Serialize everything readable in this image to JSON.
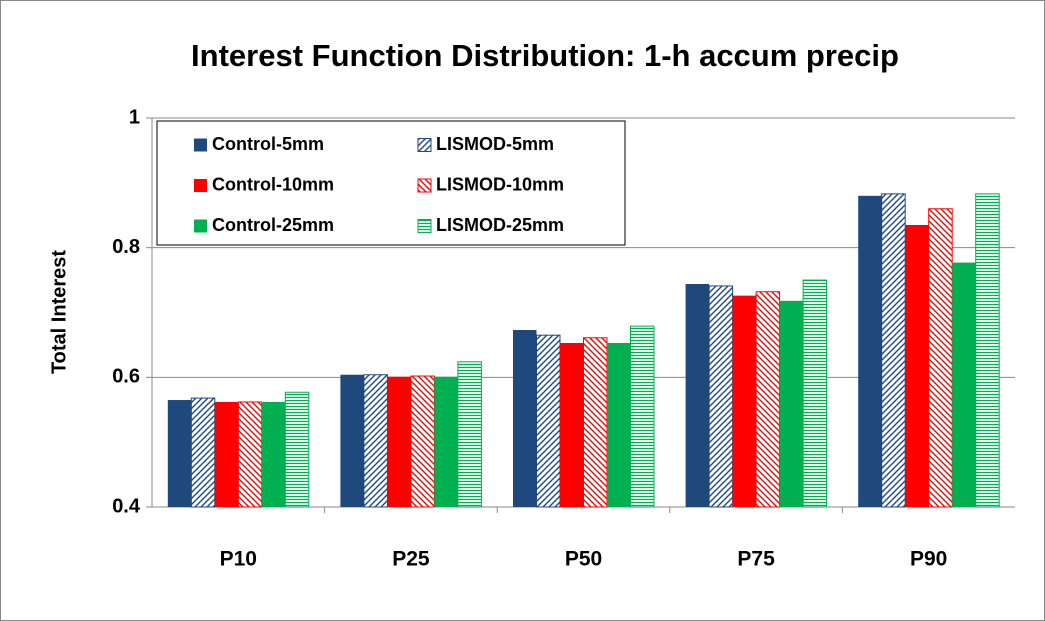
{
  "chart_data": {
    "type": "bar",
    "title": "Interest Function Distribution: 1-h accum precip",
    "y_label": "Total Interest",
    "categories": [
      "P10",
      "P25",
      "P50",
      "P75",
      "P90"
    ],
    "series": [
      {
        "name": "Control-5mm",
        "color": "#1f497d",
        "values": [
          0.565,
          0.604,
          0.673,
          0.744,
          0.88
        ]
      },
      {
        "name": "LISMOD-5mm",
        "color": "#1f497d",
        "pattern": "diagonal-up",
        "values": [
          0.568,
          0.604,
          0.665,
          0.741,
          0.883
        ]
      },
      {
        "name": "Control-10mm",
        "color": "#ff0000",
        "values": [
          0.562,
          0.601,
          0.653,
          0.726,
          0.835
        ]
      },
      {
        "name": "LISMOD-10mm",
        "color": "#ff0000",
        "pattern": "diagonal-down",
        "values": [
          0.562,
          0.602,
          0.661,
          0.732,
          0.86
        ]
      },
      {
        "name": "Control-25mm",
        "color": "#00b050",
        "values": [
          0.562,
          0.601,
          0.653,
          0.718,
          0.777
        ]
      },
      {
        "name": "LISMOD-25mm",
        "color": "#00b050",
        "pattern": "horizontal",
        "values": [
          0.577,
          0.624,
          0.679,
          0.75,
          0.883
        ]
      }
    ],
    "ylim": [
      0.4,
      1
    ],
    "yticks": [
      0.4,
      0.6,
      0.8,
      1
    ],
    "grid": true,
    "legend": "top-left"
  }
}
